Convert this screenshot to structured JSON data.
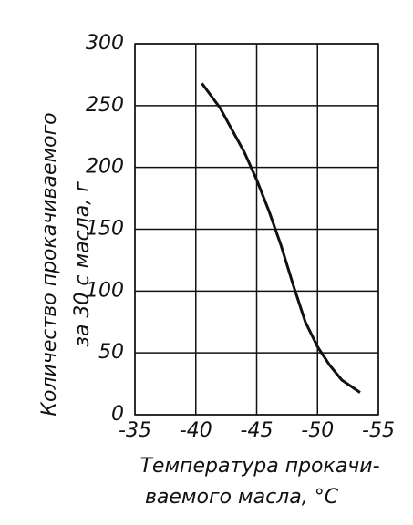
{
  "chart_data": {
    "type": "line",
    "ylabel": [
      "Количество прокачиваемого",
      "за 30 с масла, г"
    ],
    "xlabel": [
      "Температура прокачи-",
      "ваемого масла, °С"
    ],
    "x": [
      -40.5,
      -42,
      -44,
      -45,
      -46,
      -47,
      -48,
      -49,
      -50,
      -51,
      -52,
      -53.5
    ],
    "series": [
      {
        "color": "#111111",
        "values": [
          268,
          248,
          212,
          190,
          165,
          137,
          105,
          75,
          55,
          40,
          28,
          18
        ]
      }
    ],
    "xlim": [
      -35,
      -55
    ],
    "xticks": [
      -35,
      -40,
      -45,
      -50,
      -55
    ],
    "ylim": [
      0,
      300
    ],
    "yticks": [
      0,
      50,
      100,
      150,
      200,
      250,
      300
    ],
    "grid": true
  }
}
